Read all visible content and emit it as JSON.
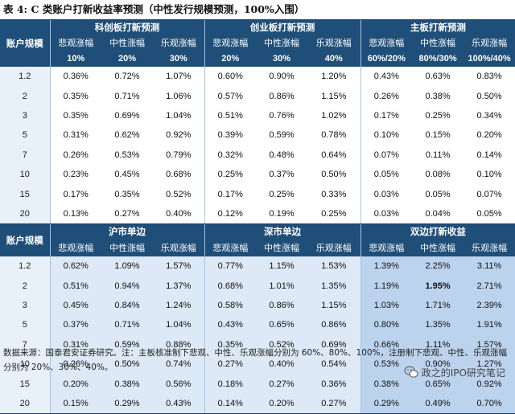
{
  "title": "表 4: C 类账户打新收益率预测（中性发行规模预测，100%入围）",
  "top_table": {
    "row_header": "账户规模",
    "groups": [
      "科创板打新预测",
      "创业板打新预测",
      "主板打新预测"
    ],
    "scenario_labels": [
      "悲观涨幅",
      "中性涨幅",
      "乐观涨幅",
      "悲观涨幅",
      "中性涨幅",
      "乐观涨幅",
      "悲观涨幅",
      "中性涨幅",
      "乐观涨幅"
    ],
    "param_labels": [
      "10%",
      "20%",
      "30%",
      "20%",
      "30%",
      "40%",
      "60%/20%",
      "80%/30%",
      "100%/40%"
    ],
    "rows": [
      {
        "acct": "1.2",
        "vals": [
          "0.36%",
          "0.72%",
          "1.07%",
          "0.60%",
          "0.90%",
          "1.20%",
          "0.43%",
          "0.63%",
          "0.83%"
        ]
      },
      {
        "acct": "2",
        "vals": [
          "0.35%",
          "0.71%",
          "1.06%",
          "0.57%",
          "0.86%",
          "1.15%",
          "0.26%",
          "0.38%",
          "0.50%"
        ]
      },
      {
        "acct": "3",
        "vals": [
          "0.35%",
          "0.69%",
          "1.04%",
          "0.51%",
          "0.76%",
          "1.02%",
          "0.17%",
          "0.25%",
          "0.34%"
        ]
      },
      {
        "acct": "5",
        "vals": [
          "0.31%",
          "0.62%",
          "0.92%",
          "0.39%",
          "0.59%",
          "0.78%",
          "0.10%",
          "0.15%",
          "0.20%"
        ]
      },
      {
        "acct": "7",
        "vals": [
          "0.26%",
          "0.53%",
          "0.79%",
          "0.32%",
          "0.48%",
          "0.64%",
          "0.07%",
          "0.11%",
          "0.14%"
        ]
      },
      {
        "acct": "10",
        "vals": [
          "0.23%",
          "0.45%",
          "0.68%",
          "0.25%",
          "0.37%",
          "0.50%",
          "0.05%",
          "0.08%",
          "0.10%"
        ]
      },
      {
        "acct": "15",
        "vals": [
          "0.17%",
          "0.35%",
          "0.52%",
          "0.17%",
          "0.25%",
          "0.33%",
          "0.03%",
          "0.05%",
          "0.07%"
        ]
      },
      {
        "acct": "20",
        "vals": [
          "0.13%",
          "0.27%",
          "0.40%",
          "0.12%",
          "0.19%",
          "0.25%",
          "0.03%",
          "0.04%",
          "0.05%"
        ]
      }
    ]
  },
  "bottom_table": {
    "row_header": "账户规模",
    "groups": [
      "沪市单边",
      "深市单边",
      "双边打新收益"
    ],
    "scenario_labels": [
      "悲观涨幅",
      "中性涨幅",
      "乐观涨幅",
      "悲观涨幅",
      "中性涨幅",
      "乐观涨幅",
      "悲观涨幅",
      "中性涨幅",
      "乐观涨幅"
    ],
    "rows": [
      {
        "acct": "1.2",
        "vals": [
          "0.62%",
          "1.09%",
          "1.57%",
          "0.77%",
          "1.15%",
          "1.53%",
          "1.39%",
          "2.25%",
          "3.11%"
        ]
      },
      {
        "acct": "2",
        "vals": [
          "0.51%",
          "0.94%",
          "1.37%",
          "0.68%",
          "1.01%",
          "1.35%",
          "1.19%",
          "1.95%",
          "2.71%"
        ]
      },
      {
        "acct": "3",
        "vals": [
          "0.45%",
          "0.84%",
          "1.24%",
          "0.58%",
          "0.86%",
          "1.15%",
          "1.03%",
          "1.71%",
          "2.39%"
        ]
      },
      {
        "acct": "5",
        "vals": [
          "0.37%",
          "0.71%",
          "1.04%",
          "0.43%",
          "0.65%",
          "0.86%",
          "0.80%",
          "1.35%",
          "1.91%"
        ]
      },
      {
        "acct": "7",
        "vals": [
          "0.31%",
          "0.59%",
          "0.88%",
          "0.35%",
          "0.52%",
          "0.69%",
          "0.66%",
          "1.11%",
          "1.57%"
        ]
      },
      {
        "acct": "10",
        "vals": [
          "0.26%",
          "0.50%",
          "0.74%",
          "0.27%",
          "0.40%",
          "0.54%",
          "0.53%",
          "0.90%",
          "1.27%"
        ]
      },
      {
        "acct": "15",
        "vals": [
          "0.20%",
          "0.38%",
          "0.56%",
          "0.18%",
          "0.27%",
          "0.36%",
          "0.38%",
          "0.65%",
          "0.92%"
        ]
      },
      {
        "acct": "20",
        "vals": [
          "0.15%",
          "0.29%",
          "0.43%",
          "0.14%",
          "0.20%",
          "0.27%",
          "0.29%",
          "0.49%",
          "0.70%"
        ]
      }
    ],
    "highlight": {
      "row": 1,
      "col": 7
    }
  },
  "footnote": "数据来源：国泰君安证券研究。注：主板核准制下悲观、中性、乐观涨幅分别为 60%、80%、100%，注册制下悲观、中性、乐观涨幅分别为 20%、30%、40%。",
  "watermark": "政之的IPO研究笔记",
  "colors": {
    "header_bg": "#1f4e79",
    "header_text": "#ffffff",
    "band_light": "#dde9f6",
    "band_mid": "#bcd3ee",
    "title_rule": "#1f3864"
  }
}
